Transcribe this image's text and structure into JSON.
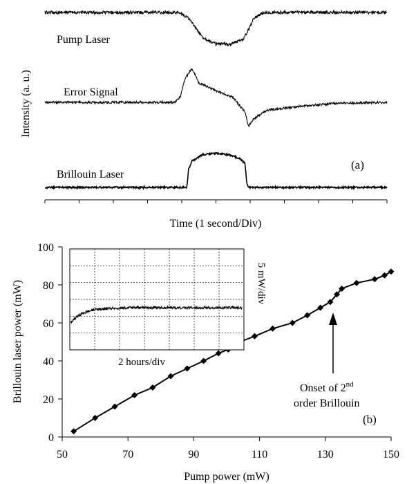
{
  "chart_data": [
    {
      "type": "line",
      "panel_label": "(a)",
      "xlabel": "Time (1 second/Div)",
      "ylabel": "Intensity (a. u.)",
      "x_divisions": 10,
      "series": [
        {
          "name": "Pump Laser",
          "x": [
            0,
            2.0,
            3.9,
            4.2,
            4.6,
            5.0,
            5.4,
            5.8,
            6.0,
            6.1,
            6.4,
            10
          ],
          "y": [
            1.0,
            1.0,
            1.0,
            0.92,
            0.65,
            0.55,
            0.55,
            0.62,
            0.8,
            0.92,
            1.0,
            1.0
          ]
        },
        {
          "name": "Error Signal",
          "x": [
            0,
            3.8,
            3.95,
            4.1,
            4.3,
            4.5,
            5.0,
            5.5,
            5.85,
            5.95,
            6.1,
            6.5,
            7.5,
            8.5,
            10
          ],
          "y": [
            0.5,
            0.5,
            0.55,
            0.75,
            0.85,
            0.7,
            0.62,
            0.55,
            0.4,
            0.25,
            0.33,
            0.42,
            0.46,
            0.49,
            0.5
          ]
        },
        {
          "name": "Brillouin Laser",
          "x": [
            0,
            4.15,
            4.2,
            4.3,
            4.6,
            5.0,
            5.4,
            5.7,
            5.85,
            5.9,
            5.95,
            10
          ],
          "y": [
            0.0,
            0.0,
            0.35,
            0.5,
            0.62,
            0.65,
            0.62,
            0.55,
            0.45,
            0.1,
            0.0,
            0.0
          ]
        }
      ]
    },
    {
      "type": "line",
      "panel_label": "(b)",
      "xlabel": "Pump power (mW)",
      "ylabel": "Brillouin laser power (mW)",
      "xlim": [
        50,
        150
      ],
      "ylim": [
        0,
        100
      ],
      "x_ticks": [
        50,
        70,
        90,
        110,
        130,
        150
      ],
      "y_ticks": [
        0,
        20,
        40,
        60,
        80,
        100
      ],
      "series": [
        {
          "x": [
            53.5,
            60,
            66,
            72,
            77.5,
            83,
            88,
            93,
            97.5,
            100.5,
            104,
            108.5,
            114,
            120,
            124.5,
            128.5,
            131.5,
            133.5,
            135,
            139.5,
            145,
            148,
            150
          ],
          "y": [
            3,
            10,
            16,
            22,
            26,
            32,
            36,
            40,
            44,
            46,
            50,
            53,
            57,
            60,
            64,
            68,
            71,
            75,
            78,
            81,
            83,
            85,
            87
          ]
        }
      ],
      "annotation": {
        "line1": "Onset of 2",
        "sup": "nd",
        "line2": "order Brillouin",
        "arrow_to": [
          131.5,
          71
        ]
      },
      "inset": {
        "xlabel": "2 hours/div",
        "ylabel": "5 mW/div",
        "grid": true,
        "x_divisions": 7,
        "y_divisions": 6
      }
    }
  ]
}
